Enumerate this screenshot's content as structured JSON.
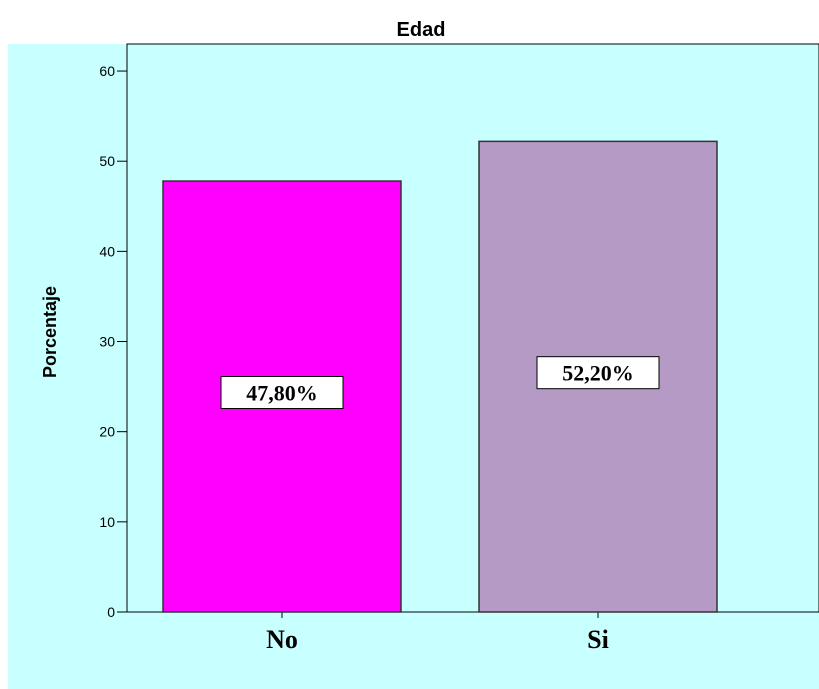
{
  "chart_data": {
    "type": "bar",
    "title": "Edad",
    "ylabel": "Porcentaje",
    "xlabel": "",
    "categories": [
      "No",
      "Si"
    ],
    "values": [
      47.8,
      52.2
    ],
    "data_labels": [
      "47,80%",
      "52,20%"
    ],
    "ylim": [
      0,
      63
    ],
    "yticks": [
      0,
      10,
      20,
      30,
      40,
      50,
      60
    ],
    "grid": false,
    "legend": "none",
    "colors": {
      "plot_background": "#c8ffff",
      "bars": [
        "#ff00ff",
        "#b59ac6"
      ],
      "bar_outline": "#333333",
      "label_box": "#ffffff"
    }
  }
}
